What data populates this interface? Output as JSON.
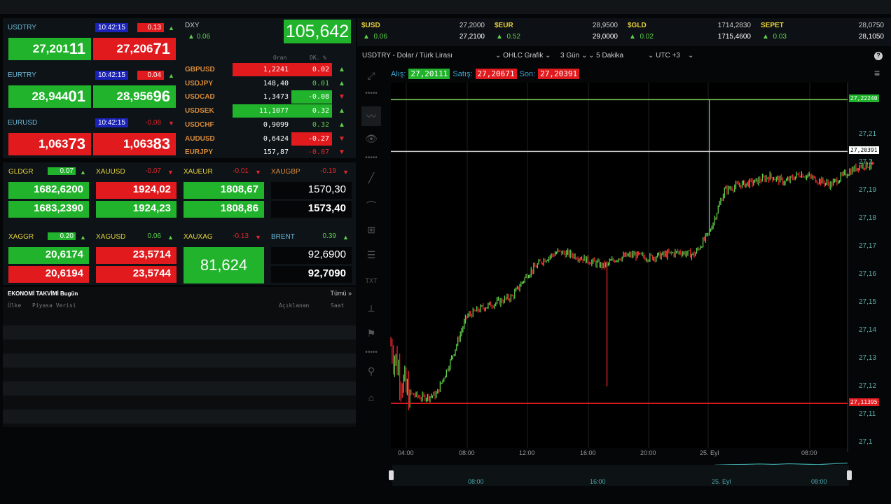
{
  "majors": [
    {
      "symbol": "USDTRY",
      "time": "10:42:15",
      "change": "0.13",
      "change_dir": "up",
      "bid_main": "27,201",
      "bid_big": "11",
      "ask_main": "27,206",
      "ask_big": "71",
      "bid_color": "green",
      "ask_color": "red"
    },
    {
      "symbol": "EURTRY",
      "time": "10:42:15",
      "change": "0.04",
      "change_dir": "up",
      "bid_main": "28,944",
      "bid_big": "01",
      "ask_main": "28,956",
      "ask_big": "96",
      "bid_color": "green",
      "ask_color": "green"
    },
    {
      "symbol": "EURUSD",
      "time": "10:42:15",
      "change": "-0.08",
      "change_dir": "down",
      "bid_main": "1,063",
      "bid_big": "73",
      "ask_main": "1,063",
      "ask_big": "83",
      "bid_color": "red",
      "ask_color": "red"
    }
  ],
  "dxy": {
    "symbol": "DXY",
    "change": "0.06",
    "value": "105,642"
  },
  "fx_table": {
    "col_rate": "Oran",
    "col_change": "DK. %",
    "rows": [
      {
        "symbol": "GBPUSD",
        "rate": "1,2241",
        "change": "0.02",
        "dir": "up"
      },
      {
        "symbol": "USDJPY",
        "rate": "148,40",
        "change": "0.01",
        "dir": "up"
      },
      {
        "symbol": "USDCAD",
        "rate": "1,3473",
        "change": "-0.08",
        "dir": "down"
      },
      {
        "symbol": "USDSEK",
        "rate": "11,1077",
        "change": "0.32",
        "dir": "up"
      },
      {
        "symbol": "USDCHF",
        "rate": "0,9099",
        "change": "0.32",
        "dir": "up"
      },
      {
        "symbol": "AUDUSD",
        "rate": "0,6424",
        "change": "-0.27",
        "dir": "down"
      },
      {
        "symbol": "EURJPY",
        "rate": "157,87",
        "change": "-0.07",
        "dir": "down"
      }
    ]
  },
  "metals": [
    {
      "symbol": "GLDGR",
      "change": "0.07",
      "dir": "up",
      "bid": "1682,6200",
      "ask": "1683,2390"
    },
    {
      "symbol": "XAUUSD",
      "change": "-0.07",
      "dir": "down",
      "bid": "1924,02",
      "ask": "1924,23"
    },
    {
      "symbol": "XAUEUR",
      "change": "-0.01",
      "dir": "down",
      "bid": "1808,67",
      "ask": "1808,86"
    },
    {
      "symbol": "XAUGBP",
      "change": "-0.19",
      "dir": "down",
      "bid": "1570,30",
      "ask": "1573,40"
    },
    {
      "symbol": "XAGGR",
      "change": "0.20",
      "dir": "up",
      "bid": "20,6174",
      "ask": "20,6194"
    },
    {
      "symbol": "XAGUSD",
      "change": "0.06",
      "dir": "up",
      "bid": "23,5714",
      "ask": "23,5744"
    },
    {
      "symbol": "XAUXAG",
      "change": "-0.13",
      "dir": "down",
      "value": "81,624"
    },
    {
      "symbol": "BRENT",
      "change": "0.39",
      "dir": "up",
      "bid": "92,6900",
      "ask": "92,7090"
    }
  ],
  "calendar": {
    "title": "EKONOMİ TAKVİMİ",
    "day": "Bugün",
    "all": "Tümü »",
    "col_country": "Ülke",
    "col_data": "Piyasa Verisi",
    "col_actual": "Açıklanan",
    "col_time": "Saat"
  },
  "tickers": [
    {
      "symbol": "$USD",
      "change": "0.06",
      "bid": "27,2000",
      "ask": "27,2100"
    },
    {
      "symbol": "$EUR",
      "change": "0.52",
      "bid": "28,9500",
      "ask": "29,0000"
    },
    {
      "symbol": "$GLD",
      "change": "0.02",
      "bid": "1714,2830",
      "ask": "1715,4600"
    },
    {
      "symbol": "SEPET",
      "change": "0.03",
      "bid": "28,0750",
      "ask": "28,1050"
    }
  ],
  "chart_toolbar": {
    "instrument": "USDTRY - Dolar / Türk Lirası",
    "chart_type": "OHLC Grafik",
    "range": "3 Gün",
    "interval": "5 Dakika",
    "timezone": "UTC +3"
  },
  "chart_quotes": {
    "bid_label": "Alış:",
    "bid": "27,20111",
    "ask_label": "Satış:",
    "ask": "27,20671",
    "last_label": "Son:",
    "last": "27,20391"
  },
  "chart_data": {
    "type": "ohlc",
    "ylim": [
      27.095,
      27.225
    ],
    "y_ticks": [
      "27,21",
      "27,2",
      "27,19",
      "27,18",
      "27,17",
      "27,16",
      "27,15",
      "27,14",
      "27,13",
      "27,12",
      "27,11",
      "27,1"
    ],
    "x_ticks": [
      "04:00",
      "08:00",
      "12:00",
      "16:00",
      "20:00",
      "25. Eyl",
      "08:00"
    ],
    "hourly_close": [
      27.135,
      27.118,
      27.116,
      27.117,
      27.13,
      27.145,
      27.148,
      27.15,
      27.152,
      27.16,
      27.165,
      27.168,
      27.167,
      27.165,
      27.163,
      27.166,
      27.167,
      27.166,
      27.167,
      27.168,
      27.167,
      27.175,
      27.19,
      27.192,
      27.193,
      27.195,
      27.193,
      27.196,
      27.194,
      27.192,
      27.196,
      27.199
    ],
    "levels": {
      "high": "27,22240",
      "last": "27,20391",
      "low": "27,11395"
    },
    "colors": {
      "up": "#5fd04a",
      "down": "#e2262a",
      "high_line": "#7ecf5a",
      "last_line": "#cfcfcf",
      "low_line": "#e11a1e"
    },
    "navigator_ticks": [
      "08:00",
      "16:00",
      "25. Eyl",
      "08:00"
    ]
  }
}
